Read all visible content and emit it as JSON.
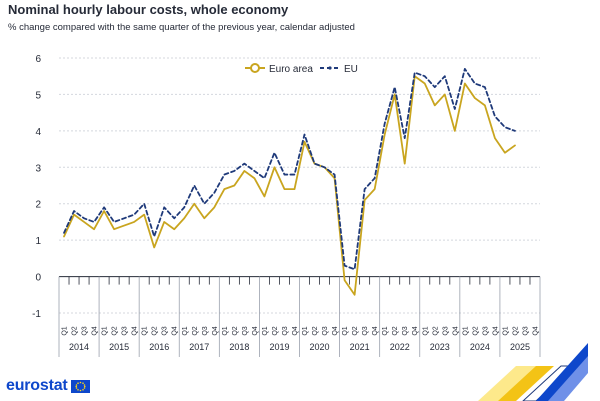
{
  "title": "Nominal hourly labour costs, whole economy",
  "subtitle": "% change compared with the same quarter of the previous year, calendar adjusted",
  "brand": {
    "name": "eurostat",
    "flag_icon": "eu-flag-icon"
  },
  "colors": {
    "euro_area": "#c9a51f",
    "eu": "#1f3a7a",
    "grid": "#d4d7de",
    "axis": "#262b38"
  },
  "chart_data": {
    "type": "line",
    "title": "Nominal hourly labour costs, whole economy",
    "subtitle": "% change compared with the same quarter of the previous year, calendar adjusted",
    "ylim": [
      -1,
      6
    ],
    "yticks": [
      -1,
      0,
      1,
      2,
      3,
      4,
      5,
      6
    ],
    "grid": true,
    "legend_position": "top-center",
    "quarter_labels": [
      "Q1",
      "Q2",
      "Q3",
      "Q4"
    ],
    "years": [
      "2014",
      "2015",
      "2016",
      "2017",
      "2018",
      "2019",
      "2020",
      "2021",
      "2022",
      "2023",
      "2024",
      "2025"
    ],
    "series": [
      {
        "name": "Euro area",
        "style": "solid",
        "color": "#c9a51f",
        "values": [
          1.1,
          1.7,
          1.5,
          1.3,
          1.8,
          1.3,
          1.4,
          1.5,
          1.7,
          0.8,
          1.5,
          1.3,
          1.6,
          2.0,
          1.6,
          1.9,
          2.4,
          2.5,
          2.9,
          2.7,
          2.2,
          3.0,
          2.4,
          2.4,
          3.7,
          3.1,
          3.0,
          2.7,
          -0.1,
          -0.5,
          2.1,
          2.4,
          3.9,
          5.0,
          3.1,
          5.5,
          5.3,
          4.7,
          5.0,
          4.0,
          5.3,
          4.9,
          4.7,
          3.8,
          3.4,
          3.6
        ]
      },
      {
        "name": "EU",
        "style": "dashed",
        "color": "#1f3a7a",
        "values": [
          1.2,
          1.8,
          1.6,
          1.5,
          1.9,
          1.5,
          1.6,
          1.7,
          2.0,
          1.1,
          1.9,
          1.6,
          1.9,
          2.5,
          2.0,
          2.3,
          2.8,
          2.9,
          3.1,
          2.9,
          2.7,
          3.4,
          2.8,
          2.8,
          3.9,
          3.1,
          3.0,
          2.8,
          0.3,
          0.2,
          2.4,
          2.7,
          4.2,
          5.2,
          3.8,
          5.6,
          5.5,
          5.2,
          5.5,
          4.6,
          5.7,
          5.3,
          5.2,
          4.4,
          4.1,
          4.0
        ]
      }
    ]
  }
}
